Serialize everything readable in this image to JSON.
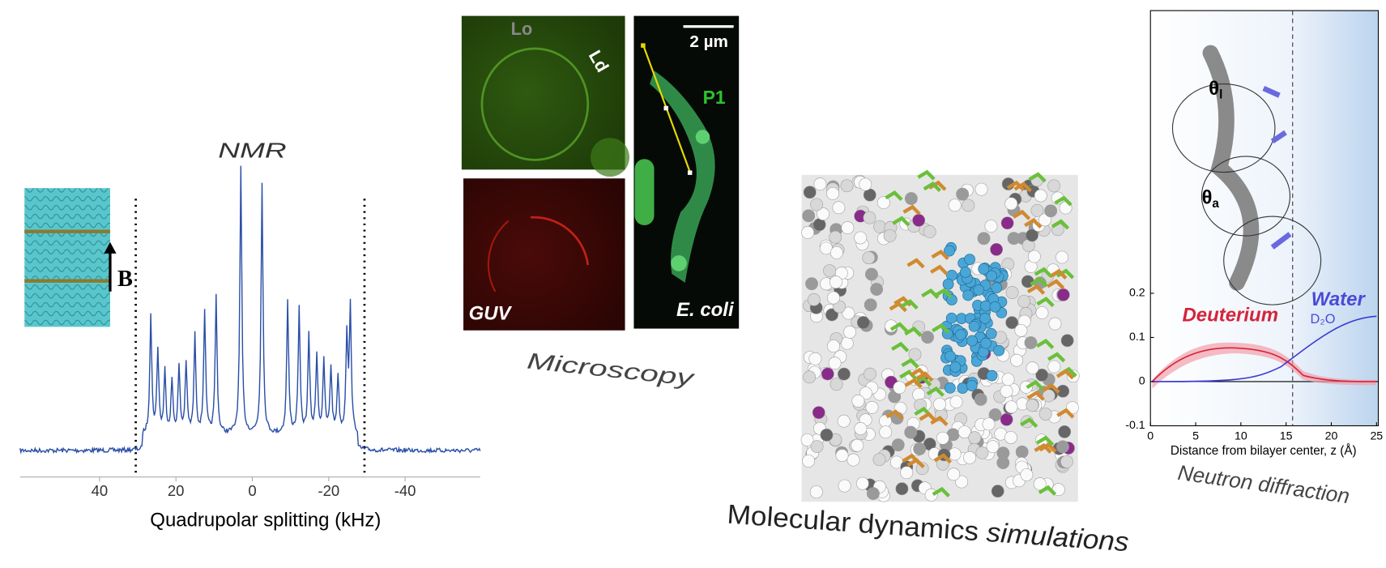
{
  "nmr": {
    "title": "NMR",
    "field_label": "B",
    "x_axis_label": "Quadrupolar splitting (kHz)",
    "x_ticks": [
      "40",
      "20",
      "0",
      "-20",
      "-40"
    ]
  },
  "microscopy": {
    "title": "Microscopy",
    "lo": "Lo",
    "ld": "Ld",
    "guv": "GUV",
    "ecoli": "E. coli",
    "p1": "P1",
    "scale_bar": "2 µm"
  },
  "md": {
    "title_main": "Molecular dynamics",
    "title_tail": "simulations"
  },
  "neutron": {
    "title": "Neutron diffraction",
    "theta": "θ",
    "theta_l_sub": "l",
    "theta_a_sub": "a",
    "deuterium": "Deuterium",
    "water": "Water",
    "d2o": "D₂O",
    "x_axis_label": "Distance from bilayer center, z (Å)",
    "x_ticks": [
      "0",
      "5",
      "10",
      "15",
      "20",
      "25"
    ],
    "y_ticks": [
      "0.2",
      "0.1",
      "0",
      "-0.1"
    ]
  }
}
